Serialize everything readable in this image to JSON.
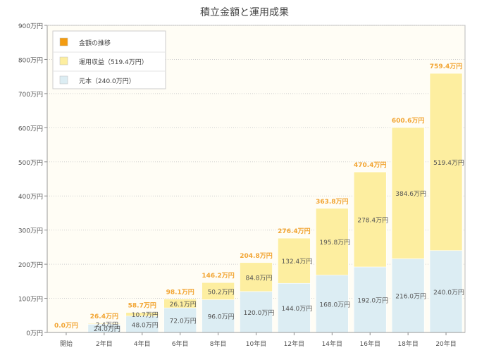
{
  "chart_data": {
    "type": "bar",
    "stacked": true,
    "title": "積立金額と運用成果",
    "categories": [
      "開始",
      "2年目",
      "4年目",
      "6年目",
      "8年目",
      "10年目",
      "12年目",
      "14年目",
      "16年目",
      "18年目",
      "20年目"
    ],
    "series": [
      {
        "name": "元本（240.0万円）",
        "color": "#dcedf3",
        "values": [
          0,
          24.0,
          48.0,
          72.0,
          96.0,
          120.0,
          144.0,
          168.0,
          192.0,
          216.0,
          240.0
        ],
        "labels": [
          "",
          "24.0万円",
          "48.0万円",
          "72.0万円",
          "96.0万円",
          "120.0万円",
          "144.0万円",
          "168.0万円",
          "192.0万円",
          "216.0万円",
          "240.0万円"
        ]
      },
      {
        "name": "運用収益（519.4万円）",
        "color": "#fdeea0",
        "values": [
          0,
          2.4,
          10.7,
          26.1,
          50.2,
          84.8,
          132.4,
          195.8,
          278.4,
          384.6,
          519.4
        ],
        "labels": [
          "",
          "2.4万円",
          "10.7万円",
          "26.1万円",
          "50.2万円",
          "84.8万円",
          "132.4万円",
          "195.8万円",
          "278.4万円",
          "384.6万円",
          "519.4万円"
        ]
      }
    ],
    "totals": [
      0.0,
      26.4,
      58.7,
      98.1,
      146.2,
      204.8,
      276.4,
      363.8,
      470.4,
      600.6,
      759.4
    ],
    "total_labels": [
      "0.0万円",
      "26.4万円",
      "58.7万円",
      "98.1万円",
      "146.2万円",
      "204.8万円",
      "276.4万円",
      "363.8万円",
      "470.4万円",
      "600.6万円",
      "759.4万円"
    ],
    "total_label_color": "#f2a533",
    "legend_marker_only": {
      "name": "金額の推移",
      "color": "#f39c12"
    },
    "legend_position": "top-left",
    "ylim": [
      0,
      900
    ],
    "yticks": [
      0,
      100,
      200,
      300,
      400,
      500,
      600,
      700,
      800,
      900
    ],
    "ytick_labels": [
      "0万円",
      "100万円",
      "200万円",
      "300万円",
      "400万円",
      "500万円",
      "600万円",
      "700万円",
      "800万円",
      "900万円"
    ],
    "plot_background": "#fffdf5",
    "grid": true
  }
}
